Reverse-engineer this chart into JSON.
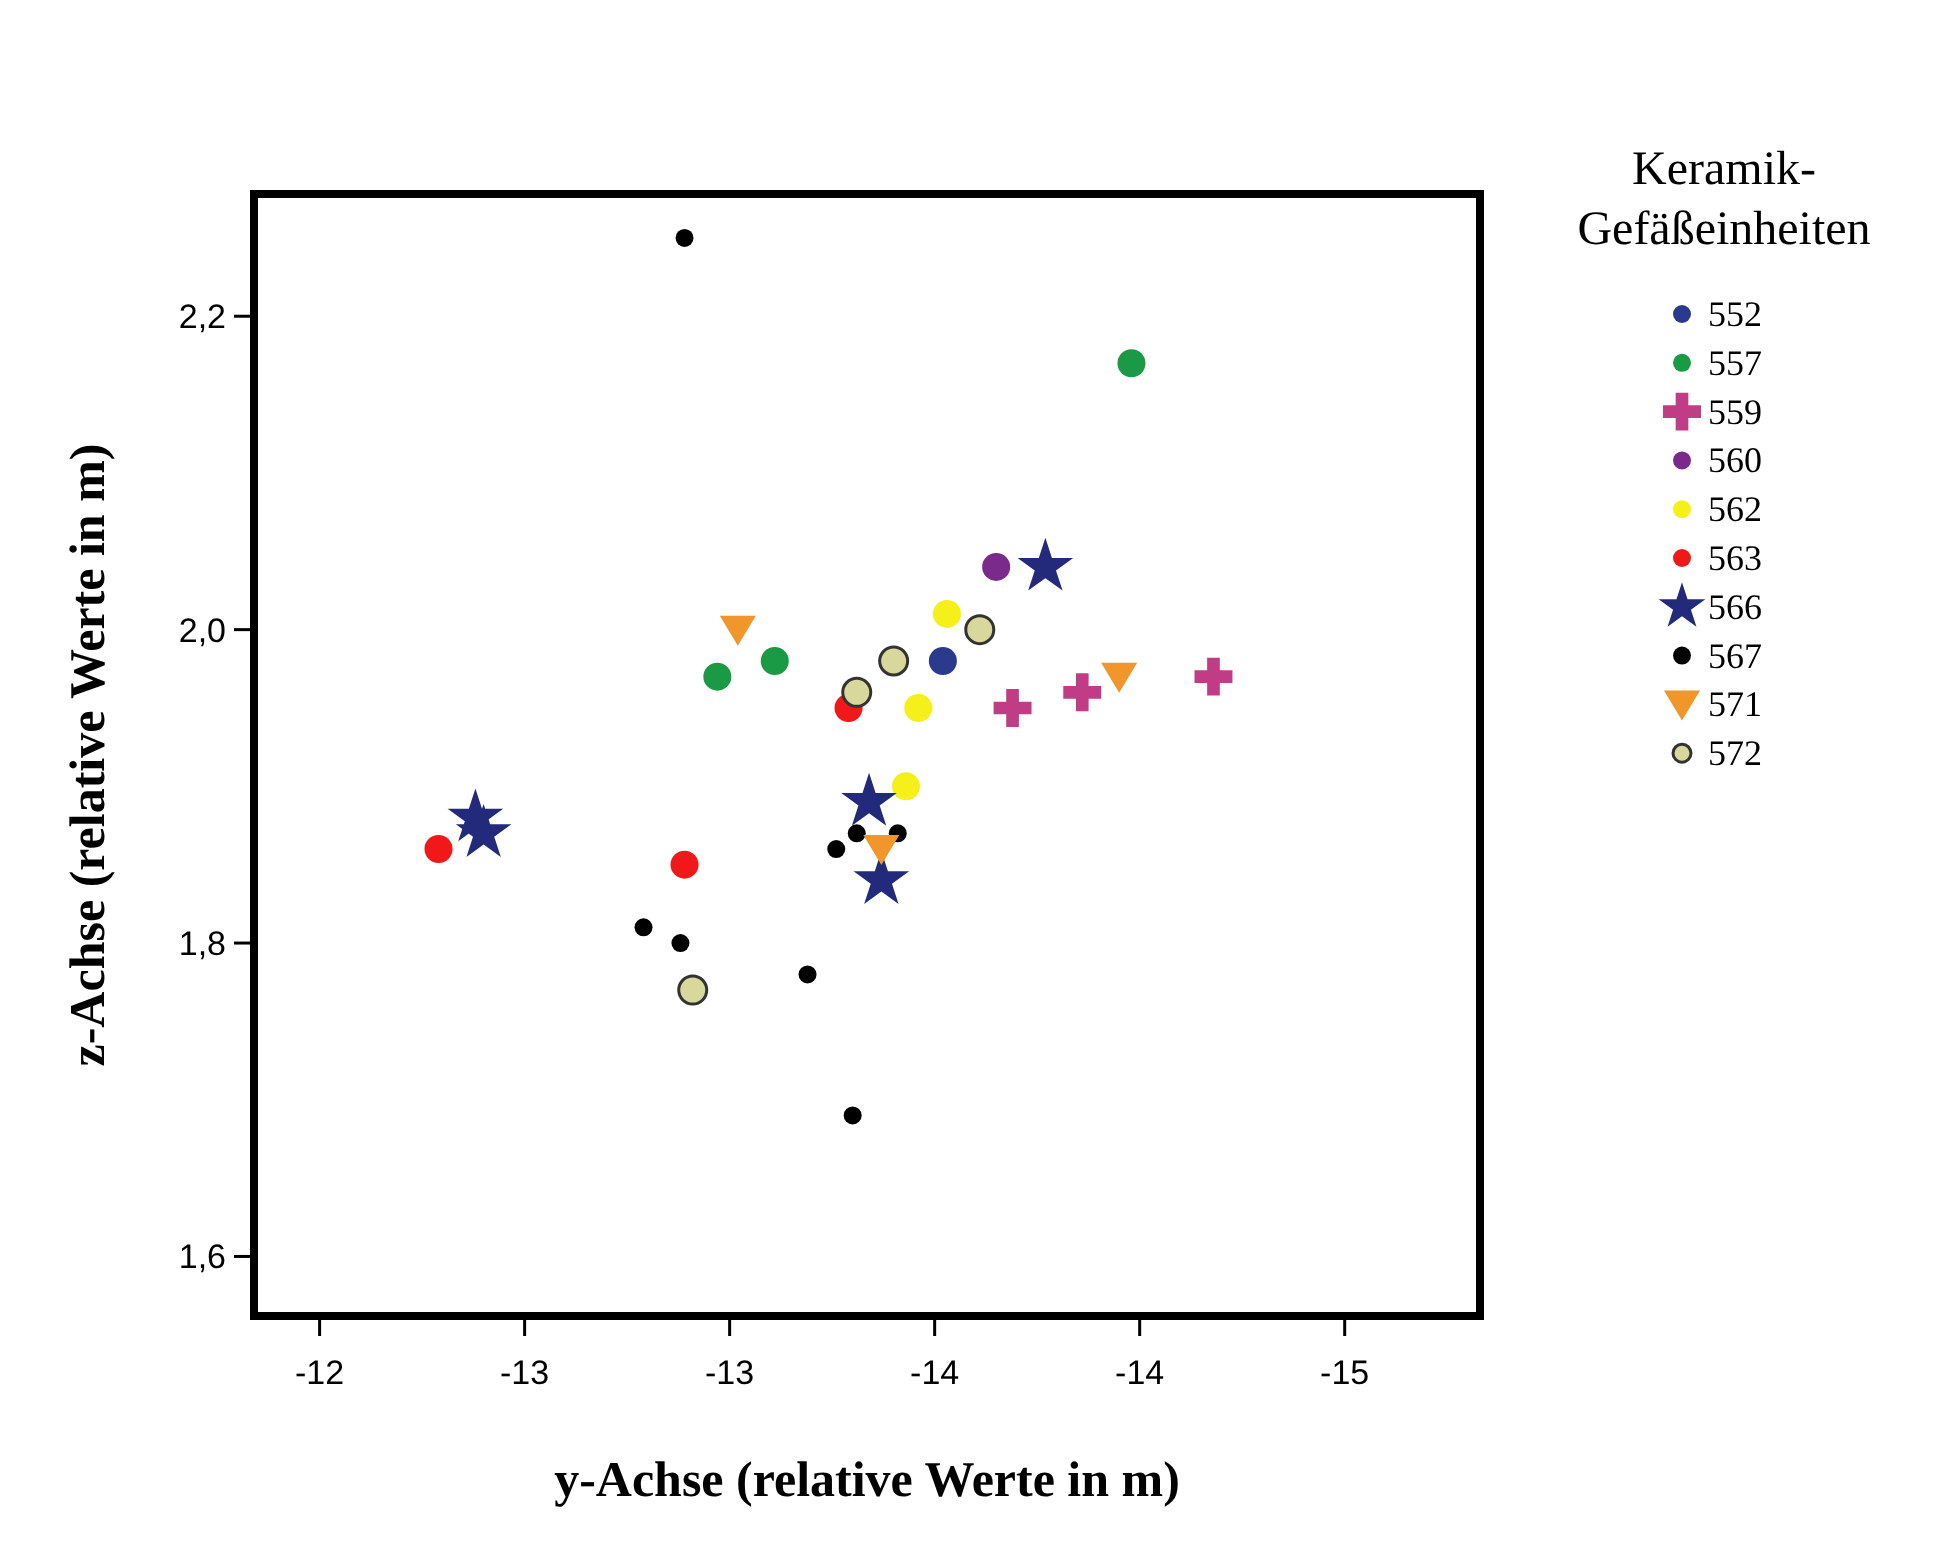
{
  "chart_data": {
    "type": "scatter",
    "xlabel": "y-Achse (relative Werte in m)",
    "ylabel": "z-Achse (relative Werte in m)",
    "legend_title": "Keramik-Gefäßeinheiten",
    "legend": "right",
    "grid": false,
    "xlim": [
      -11.84,
      -14.83
    ],
    "xticks": [
      -12,
      {
        "value": -12.5,
        "label": "-13"
      },
      -13,
      {
        "value": -13.5,
        "label": "-14"
      },
      -14,
      {
        "value": -14.5,
        "label": "-15"
      }
    ],
    "ylim": [
      1.562,
      2.278
    ],
    "yticks": [
      {
        "value": 1.6,
        "label": "1,6"
      },
      {
        "value": 1.8,
        "label": "1,8"
      },
      {
        "value": 2.0,
        "label": "2,0"
      },
      {
        "value": 2.2,
        "label": "2,2"
      }
    ],
    "series": [
      {
        "name": "552",
        "color": "#2a3a8c",
        "marker": "circle",
        "x": [
          -13.52
        ],
        "values": [
          1.98
        ]
      },
      {
        "name": "557",
        "color": "#1a9a44",
        "marker": "circle",
        "x": [
          -13.98,
          -12.97,
          -13.11
        ],
        "values": [
          2.17,
          1.97,
          1.98
        ]
      },
      {
        "name": "559",
        "color": "#c03c84",
        "marker": "cross",
        "x": [
          -13.69,
          -13.86,
          -14.18
        ],
        "values": [
          1.95,
          1.96,
          1.97
        ]
      },
      {
        "name": "560",
        "color": "#7a2a8a",
        "marker": "circle",
        "x": [
          -13.65
        ],
        "values": [
          2.04
        ]
      },
      {
        "name": "562",
        "color": "#f5f01a",
        "marker": "circle",
        "x": [
          -13.53,
          -13.46,
          -13.43
        ],
        "values": [
          2.01,
          1.95,
          1.9
        ]
      },
      {
        "name": "563",
        "color": "#f01818",
        "marker": "circle",
        "x": [
          -13.29,
          -12.29,
          -12.89
        ],
        "values": [
          1.95,
          1.86,
          1.85
        ]
      },
      {
        "name": "566",
        "color": "#232a7c",
        "marker": "star",
        "x": [
          -13.77,
          -12.38,
          -12.4,
          -13.34,
          -13.37
        ],
        "values": [
          2.04,
          1.88,
          1.87,
          1.89,
          1.84
        ]
      },
      {
        "name": "567",
        "color": "#000000",
        "marker": "circle",
        "x": [
          -12.89,
          -13.26,
          -13.31,
          -13.41,
          -12.79,
          -12.88,
          -13.19,
          -13.3
        ],
        "values": [
          2.25,
          1.86,
          1.87,
          1.87,
          1.81,
          1.8,
          1.78,
          1.69
        ]
      },
      {
        "name": "571",
        "color": "#f0962a",
        "marker": "triangle",
        "x": [
          -13.02,
          -13.37,
          -13.95
        ],
        "values": [
          2.0,
          1.86,
          1.97
        ]
      },
      {
        "name": "572",
        "color": "#d8d89c",
        "marker": "circle",
        "x": [
          -13.31,
          -13.4,
          -13.61,
          -12.91
        ],
        "values": [
          1.96,
          1.98,
          2.0,
          1.77
        ]
      }
    ]
  }
}
